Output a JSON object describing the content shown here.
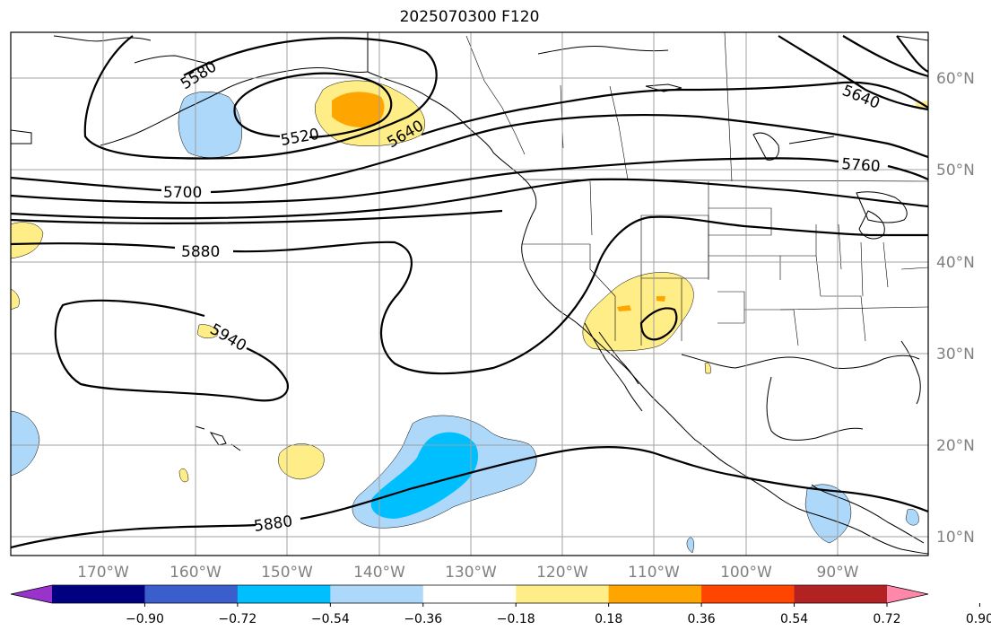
{
  "title": "2025070300 F120",
  "lat_labels": [
    "60°N",
    "50°N",
    "40°N",
    "30°N",
    "20°N",
    "10°N"
  ],
  "lon_labels": [
    "170°W",
    "160°W",
    "150°W",
    "140°W",
    "130°W",
    "120°W",
    "110°W",
    "100°W",
    "90°W"
  ],
  "contour_labels": [
    "5580",
    "5520",
    "5640",
    "5640",
    "5700",
    "5760",
    "5880",
    "5940",
    "5880"
  ],
  "colorbar": {
    "tick_labels": [
      "−0.90",
      "−0.72",
      "−0.54",
      "−0.36",
      "−0.18",
      "0.18",
      "0.36",
      "0.54",
      "0.72",
      "0.90"
    ],
    "colors": [
      "#9933cc",
      "#000080",
      "#3a5fcd",
      "#00bfff",
      "#add8fa",
      "#ffffff",
      "#ffee88",
      "#ffa500",
      "#ff4500",
      "#b22222",
      "#ff88aa"
    ]
  },
  "colors": {
    "contour": "#000000",
    "grid": "#a0a0a0",
    "coast": "#000000"
  }
}
